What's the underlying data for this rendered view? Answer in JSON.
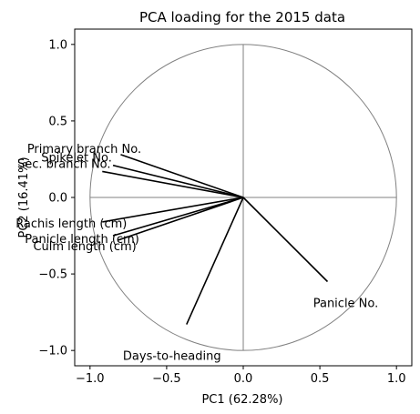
{
  "chart_data": {
    "type": "scatter",
    "subtype": "pca-loading-biplot",
    "title": "PCA loading for the 2015 data",
    "xlabel": "PC1 (62.28%)",
    "ylabel": "PC2 (16.41%)",
    "xlim": [
      -1.1,
      1.1
    ],
    "ylim": [
      -1.1,
      1.1
    ],
    "xticks": [
      -1.0,
      -0.5,
      0.0,
      0.5,
      1.0
    ],
    "yticks": [
      -1.0,
      -0.5,
      0.0,
      0.5,
      1.0
    ],
    "xtick_labels": [
      "−1.0",
      "−0.5",
      "0.0",
      "0.5",
      "1.0"
    ],
    "ytick_labels": [
      "−1.0",
      "−0.5",
      "0.0",
      "0.5",
      "1.0"
    ],
    "unit_circle": true,
    "circle_color": "#808080",
    "vector_color": "#000000",
    "grid": false,
    "loadings": [
      {
        "label": "Primary branch No.",
        "x": -0.8,
        "y": 0.28
      },
      {
        "label": "Spikelet No.",
        "x": -0.85,
        "y": 0.21
      },
      {
        "label": "Sec. branch No.",
        "x": -0.92,
        "y": 0.17
      },
      {
        "label": "Rachis length (cm)",
        "x": -0.92,
        "y": -0.16
      },
      {
        "label": "Panicle length (cm)",
        "x": -0.85,
        "y": -0.25
      },
      {
        "label": "Culm length (cm)",
        "x": -0.82,
        "y": -0.28
      },
      {
        "label": "Panicle No.",
        "x": 0.55,
        "y": -0.55
      },
      {
        "label": "Days-to-heading",
        "x": -0.37,
        "y": -0.83
      }
    ]
  }
}
